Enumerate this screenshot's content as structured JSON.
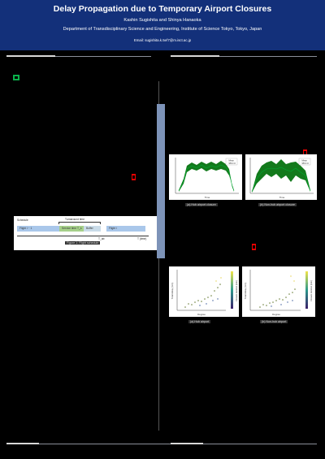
{
  "header": {
    "title": "Delay Propagation due to Temporary Airport Closures",
    "authors": "Kashin Sugishita and Shinya Hanaoka",
    "affiliation": "Department of Transdisciplinary Science and Engineering, Institute of Science Tokyo, Tokyo, Japan",
    "email": "Email: sugishita.k.5ef7@m.isct.ac.jp"
  },
  "schedule_diagram": {
    "schedule_label": "Schedule",
    "turnaround_label": "Turnaround time",
    "flight_i": "Flight i − 1",
    "service": "Service time T_s",
    "buffer": "Buffer",
    "flight": "Flight i",
    "t_ab": "T_ab",
    "time_axis": "T (time)",
    "caption": "Figure 1: Flight schedule"
  },
  "figure2": {
    "left_caption": "(a) Hub airport closure",
    "right_caption": "(b) Non-hub airport closure",
    "x_label": "Time",
    "legend": [
      "Mean",
      "95% CI"
    ]
  },
  "figure3": {
    "left_caption": "(a) Hub airport",
    "right_caption": "(b) Non-hub airport",
    "x_label": "Degree",
    "y_label": "Total delay (min)",
    "colorbar_label": "Closure duration (min)"
  }
}
